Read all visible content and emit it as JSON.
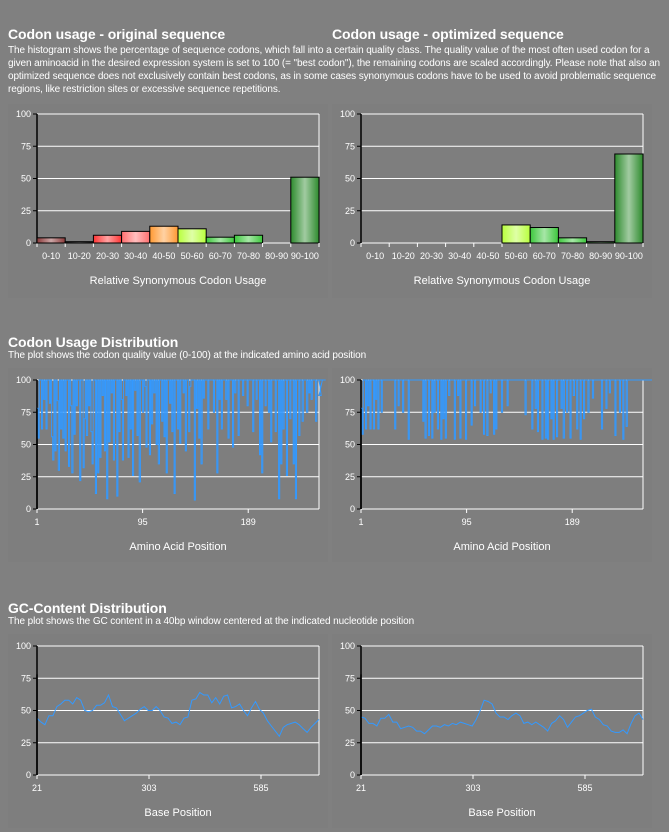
{
  "sections": {
    "codon_usage": {
      "title_original": "Codon usage - original sequence",
      "title_optimized": "Codon usage - optimized sequence",
      "description": "The histogram shows the percentage of sequence codons, which fall into a certain quality class. The quality value of the most often used codon for a given aminoacid in the desired expression system is set to 100 (= \"best codon\"), the remaining codons are scaled accordingly. Please note that also an optimized sequence does not exclusively contain best codons, as in some cases synonymous codons have to be used to avoid problematic sequence regions, like restriction sites or excessive sequence repetitions."
    },
    "codon_distribution": {
      "title": "Codon Usage Distribution",
      "description": "The plot shows the codon quality value (0-100) at the indicated amino acid position"
    },
    "gc_distribution": {
      "title": "GC-Content Distribution",
      "description": "The plot shows the GC content in a 40bp window centered at the indicated nucleotide position"
    }
  },
  "colors": {
    "line": "#3399ff",
    "grid": "#ffffff",
    "axis": "#000000",
    "bars": [
      "#8b3a3a",
      "#202020",
      "#ff3333",
      "#ff6f6f",
      "#ff9933",
      "#b8ff3c",
      "#3cc83c",
      "#3cc83c",
      "#2e8b2e",
      "#2e8b2e"
    ]
  },
  "chart_data": [
    {
      "id": "hist-original",
      "type": "bar",
      "title": "Codon usage - original sequence",
      "categories": [
        "0-10",
        "10-20",
        "20-30",
        "30-40",
        "40-50",
        "50-60",
        "60-70",
        "70-80",
        "80-90",
        "90-100"
      ],
      "values": [
        4,
        1,
        6,
        9,
        13,
        11,
        4.5,
        6,
        0,
        51
      ],
      "xlabel": "Relative Synonymous Codon Usage",
      "ylabel": "",
      "ylim": [
        0,
        100
      ],
      "yticks": [
        0,
        25,
        50,
        75,
        100
      ],
      "grid": true
    },
    {
      "id": "hist-optimized",
      "type": "bar",
      "title": "Codon usage - optimized sequence",
      "categories": [
        "0-10",
        "10-20",
        "20-30",
        "30-40",
        "40-50",
        "50-60",
        "60-70",
        "70-80",
        "80-90",
        "90-100"
      ],
      "values": [
        0,
        0,
        0,
        0,
        0,
        14,
        12,
        4,
        1,
        69
      ],
      "xlabel": "Relative Synonymous Codon Usage",
      "ylabel": "",
      "ylim": [
        0,
        100
      ],
      "yticks": [
        0,
        25,
        50,
        75,
        100
      ],
      "grid": true
    },
    {
      "id": "codon-dist-original",
      "type": "line",
      "title": "Codon Usage Distribution - original",
      "xlabel": "Amino Acid Position",
      "ylabel": "",
      "xlim": [
        1,
        252
      ],
      "xticks": [
        1,
        95,
        189
      ],
      "ylim": [
        0,
        100
      ],
      "yticks": [
        0,
        25,
        50,
        75,
        100
      ],
      "grid": true,
      "y": [
        78,
        55,
        100,
        100,
        62,
        100,
        85,
        100,
        62,
        100,
        100,
        82,
        100,
        56,
        38,
        100,
        45,
        100,
        84,
        30,
        100,
        62,
        100,
        55,
        100,
        45,
        100,
        100,
        33,
        100,
        80,
        28,
        100,
        58,
        100,
        80,
        100,
        100,
        22,
        100,
        100,
        32,
        70,
        100,
        57,
        100,
        80,
        100,
        60,
        35,
        100,
        100,
        12,
        100,
        28,
        100,
        40,
        100,
        88,
        100,
        45,
        100,
        8,
        100,
        52,
        100,
        90,
        100,
        38,
        100,
        100,
        10,
        100,
        60,
        100,
        85,
        38,
        100,
        100,
        88,
        100,
        40,
        100,
        62,
        100,
        26,
        100,
        92,
        100,
        57,
        100,
        21,
        100,
        100,
        75,
        100,
        95,
        48,
        100,
        100,
        42,
        100,
        66,
        100,
        90,
        100,
        50,
        100,
        35,
        100,
        100,
        68,
        100,
        56,
        100,
        28,
        100,
        100,
        82,
        100,
        60,
        100,
        12,
        100,
        100,
        62,
        100,
        51,
        100,
        100,
        90,
        100,
        45,
        100,
        100,
        60,
        95,
        100,
        100,
        100,
        7,
        100,
        78,
        100,
        55,
        100,
        35,
        100,
        86,
        100,
        100,
        100,
        62,
        100,
        100,
        100,
        100,
        75,
        100,
        100,
        28,
        100,
        85,
        100,
        62,
        100,
        100,
        100,
        85,
        100,
        55,
        100,
        100,
        100,
        48,
        100,
        90,
        100,
        100,
        57,
        100,
        100,
        100,
        88,
        100,
        100,
        100,
        80,
        100,
        100,
        100,
        100,
        60,
        100,
        100,
        85,
        100,
        100,
        42,
        100,
        28,
        100,
        100,
        80,
        100,
        100,
        75,
        100,
        52,
        100,
        100,
        100,
        60,
        100,
        100,
        8,
        100,
        35,
        100,
        62,
        100,
        100,
        26,
        100,
        100,
        70,
        100,
        100,
        35,
        100,
        8,
        100,
        100,
        57,
        100,
        100,
        68,
        100,
        100,
        100,
        75,
        100,
        90,
        100,
        85,
        100,
        100,
        100,
        68,
        100,
        100,
        100,
        100,
        88,
        100,
        100,
        100,
        100
      ],
      "color": "#3399ff"
    },
    {
      "id": "codon-dist-optimized",
      "type": "line",
      "title": "Codon Usage Distribution - optimized",
      "xlabel": "Amino Acid Position",
      "ylabel": "",
      "xlim": [
        1,
        252
      ],
      "xticks": [
        1,
        95,
        189
      ],
      "ylim": [
        0,
        100
      ],
      "yticks": [
        0,
        25,
        50,
        75,
        100
      ],
      "grid": true,
      "y": [
        78,
        58,
        100,
        100,
        62,
        100,
        80,
        100,
        62,
        100,
        100,
        62,
        100,
        85,
        100,
        62,
        100,
        100,
        75,
        100,
        100,
        100,
        100,
        100,
        100,
        100,
        100,
        100,
        100,
        100,
        62,
        100,
        100,
        80,
        100,
        100,
        100,
        75,
        100,
        100,
        100,
        100,
        54,
        100,
        100,
        100,
        100,
        100,
        100,
        100,
        100,
        100,
        100,
        100,
        100,
        68,
        100,
        55,
        100,
        100,
        57,
        100,
        100,
        55,
        100,
        75,
        100,
        100,
        62,
        100,
        100,
        54,
        100,
        70,
        100,
        55,
        100,
        100,
        88,
        100,
        100,
        100,
        100,
        54,
        100,
        100,
        88,
        100,
        55,
        100,
        100,
        100,
        100,
        54,
        100,
        100,
        100,
        100,
        65,
        100,
        100,
        80,
        100,
        100,
        100,
        100,
        75,
        100,
        100,
        58,
        100,
        100,
        57,
        100,
        100,
        90,
        100,
        100,
        58,
        100,
        62,
        100,
        100,
        100,
        100,
        75,
        100,
        100,
        100,
        100,
        80,
        100,
        100,
        100,
        100,
        100,
        100,
        100,
        100,
        100,
        100,
        100,
        100,
        100,
        100,
        100,
        73,
        100,
        100,
        100,
        100,
        100,
        62,
        100,
        100,
        78,
        100,
        60,
        100,
        100,
        100,
        54,
        100,
        100,
        55,
        100,
        54,
        100,
        100,
        70,
        100,
        54,
        100,
        100,
        56,
        100,
        100,
        100,
        78,
        100,
        55,
        100,
        100,
        75,
        100,
        100,
        55,
        100,
        100,
        88,
        100,
        100,
        62,
        100,
        100,
        54,
        100,
        100,
        70,
        100,
        100,
        100,
        75,
        100,
        100,
        100,
        86,
        100,
        100,
        100,
        100,
        100,
        100,
        100,
        62,
        100,
        100,
        100,
        78,
        100,
        100,
        90,
        100,
        100,
        100,
        100,
        57,
        100,
        100,
        100,
        75,
        100,
        100,
        54,
        100,
        100,
        64,
        100,
        100,
        100,
        100,
        100,
        100,
        100,
        100,
        100,
        100,
        100,
        100,
        100,
        100,
        100,
        100,
        100,
        100,
        100,
        100,
        100,
        100,
        100
      ],
      "color": "#3399ff"
    },
    {
      "id": "gc-original",
      "type": "line",
      "title": "GC-Content Distribution - original",
      "xlabel": "Base Position",
      "ylabel": "",
      "xlim": [
        21,
        731
      ],
      "xticks": [
        21,
        303,
        585
      ],
      "ylim": [
        0,
        100
      ],
      "yticks": [
        0,
        25,
        50,
        75,
        100
      ],
      "grid": true,
      "x": [
        21,
        31,
        41,
        51,
        61,
        71,
        81,
        91,
        101,
        111,
        121,
        131,
        141,
        151,
        161,
        171,
        181,
        191,
        201,
        211,
        221,
        231,
        241,
        251,
        261,
        271,
        281,
        291,
        301,
        311,
        321,
        331,
        341,
        351,
        361,
        371,
        381,
        391,
        401,
        411,
        421,
        431,
        441,
        451,
        461,
        471,
        481,
        491,
        501,
        511,
        521,
        531,
        541,
        551,
        561,
        571,
        581,
        591,
        601,
        611,
        621,
        631,
        641,
        651,
        661,
        671,
        681,
        691,
        701,
        711,
        721,
        731
      ],
      "y": [
        44,
        41,
        39,
        46,
        46,
        53,
        55,
        58,
        58,
        55,
        60,
        58,
        50,
        49,
        50,
        54,
        54,
        56,
        62,
        53,
        52,
        47,
        42,
        44,
        46,
        48,
        51,
        53,
        50,
        50,
        53,
        50,
        45,
        44,
        40,
        41,
        39,
        44,
        45,
        58,
        59,
        64,
        62,
        62,
        56,
        60,
        55,
        61,
        62,
        52,
        53,
        55,
        50,
        46,
        52,
        57,
        51,
        48,
        42,
        38,
        34,
        30,
        37,
        39,
        40,
        41,
        39,
        36,
        33,
        37,
        40,
        43
      ],
      "color": "#3399ff"
    },
    {
      "id": "gc-optimized",
      "type": "line",
      "title": "GC-Content Distribution - optimized",
      "xlabel": "Base Position",
      "ylabel": "",
      "xlim": [
        21,
        731
      ],
      "xticks": [
        21,
        303,
        585
      ],
      "ylim": [
        0,
        100
      ],
      "yticks": [
        0,
        25,
        50,
        75,
        100
      ],
      "grid": true,
      "x": [
        21,
        31,
        41,
        51,
        61,
        71,
        81,
        91,
        101,
        111,
        121,
        131,
        141,
        151,
        161,
        171,
        181,
        191,
        201,
        211,
        221,
        231,
        241,
        251,
        261,
        271,
        281,
        291,
        301,
        311,
        321,
        331,
        341,
        351,
        361,
        371,
        381,
        391,
        401,
        411,
        421,
        431,
        441,
        451,
        461,
        471,
        481,
        491,
        501,
        511,
        521,
        531,
        541,
        551,
        561,
        571,
        581,
        591,
        601,
        611,
        621,
        631,
        641,
        651,
        661,
        671,
        681,
        691,
        701,
        711,
        721,
        731
      ],
      "y": [
        45,
        44,
        40,
        40,
        38,
        44,
        44,
        47,
        41,
        41,
        36,
        37,
        38,
        37,
        34,
        34,
        32,
        35,
        38,
        38,
        37,
        39,
        38,
        40,
        39,
        41,
        40,
        39,
        38,
        43,
        50,
        58,
        57,
        55,
        48,
        45,
        45,
        43,
        46,
        48,
        46,
        40,
        41,
        39,
        41,
        39,
        37,
        34,
        40,
        42,
        46,
        43,
        37,
        41,
        45,
        46,
        48,
        50,
        51,
        45,
        43,
        39,
        38,
        34,
        33,
        33,
        35,
        32,
        40,
        46,
        48,
        43
      ],
      "color": "#3399ff"
    }
  ]
}
